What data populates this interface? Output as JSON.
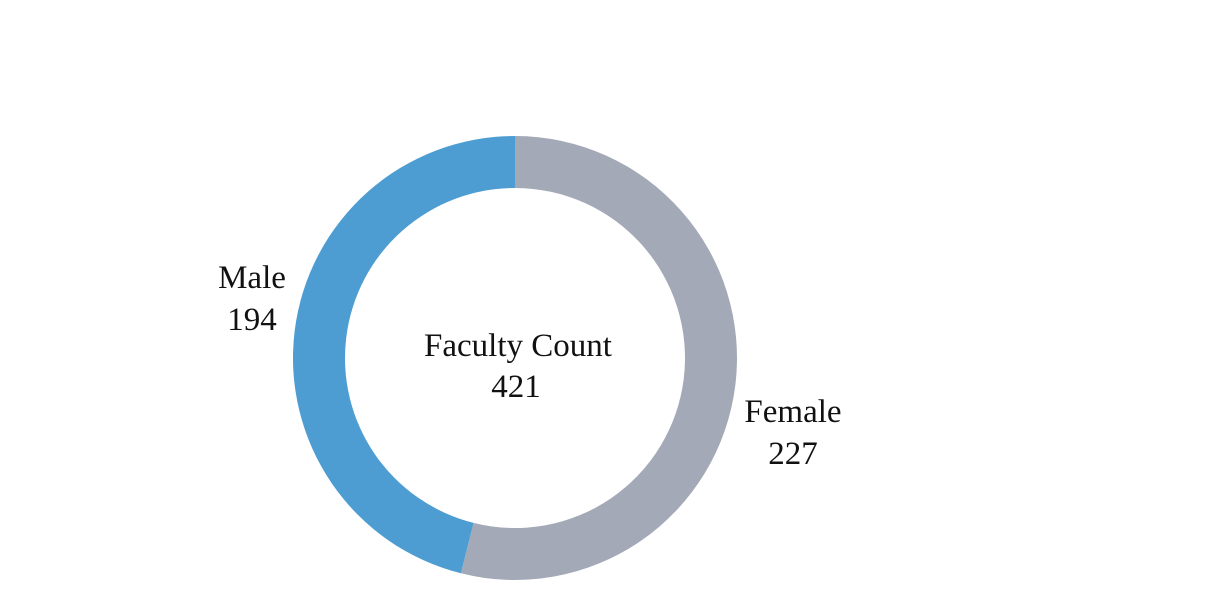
{
  "chart_data": {
    "type": "pie",
    "variant": "donut",
    "center": {
      "title": "Faculty Count",
      "value": "421"
    },
    "slices": [
      {
        "name": "Female",
        "value": 227,
        "label_value": "227",
        "color": "#a3a9b7"
      },
      {
        "name": "Male",
        "value": 194,
        "label_value": "194",
        "color": "#4d9dd3"
      }
    ]
  }
}
